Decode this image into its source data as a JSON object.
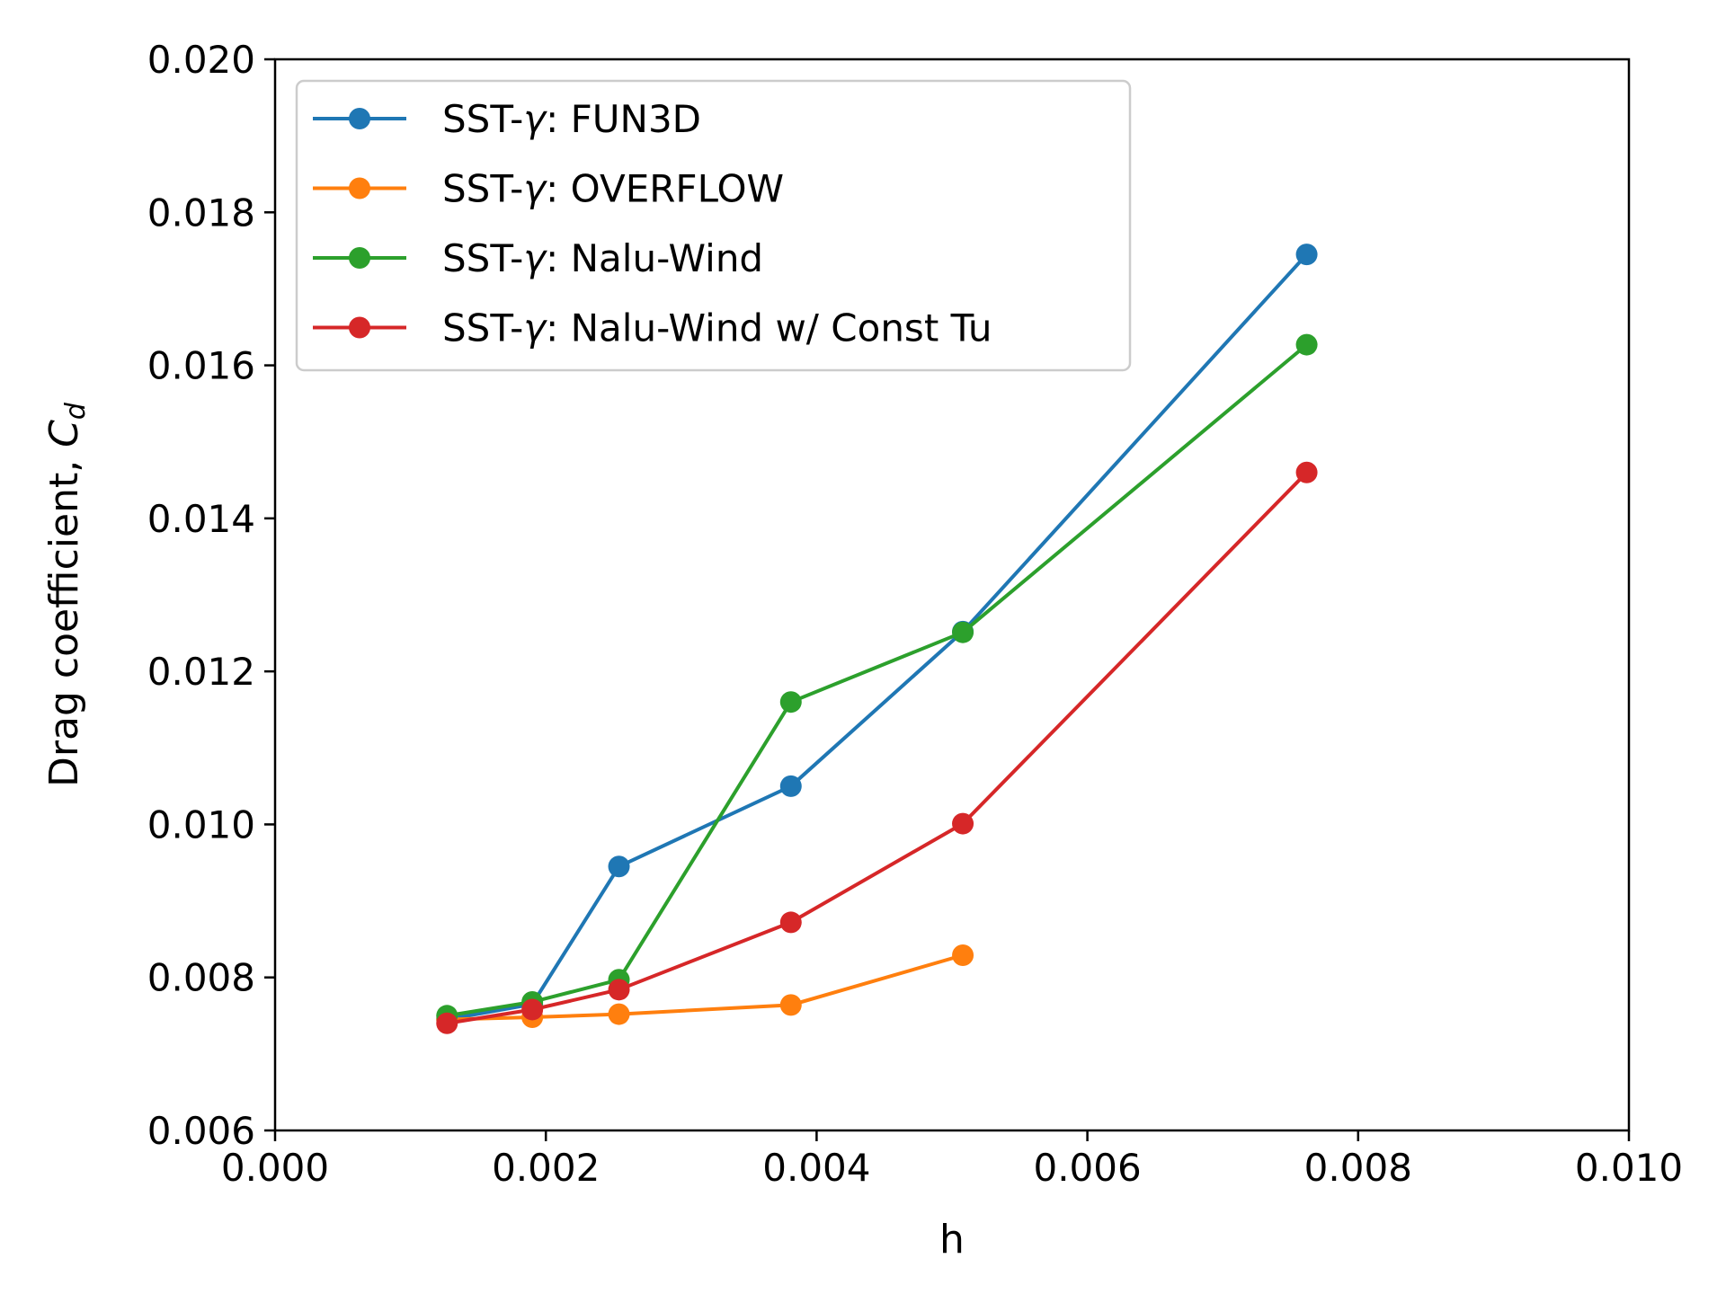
{
  "chart_data": {
    "type": "line",
    "xlabel": "h",
    "ylabel": "Drag coefficient, ",
    "ylabel_symbol": "C",
    "ylabel_subscript": "d",
    "xlim": [
      0.0,
      0.01
    ],
    "ylim": [
      0.006,
      0.02
    ],
    "xticks": [
      0.0,
      0.002,
      0.004,
      0.006,
      0.008,
      0.01
    ],
    "xtick_labels": [
      "0.000",
      "0.002",
      "0.004",
      "0.006",
      "0.008",
      "0.010"
    ],
    "yticks": [
      0.006,
      0.008,
      0.01,
      0.012,
      0.014,
      0.016,
      0.018,
      0.02
    ],
    "ytick_labels": [
      "0.006",
      "0.008",
      "0.010",
      "0.012",
      "0.014",
      "0.016",
      "0.018",
      "0.020"
    ],
    "grid": false,
    "legend_position": "top-left",
    "series": [
      {
        "name_prefix": "SST-",
        "name_symbol": "γ",
        "name_suffix": ": FUN3D",
        "color": "#1f77b4",
        "x": [
          0.00127,
          0.0019,
          0.00254,
          0.00381,
          0.00508,
          0.00762
        ],
        "y": [
          0.00745,
          0.00765,
          0.00945,
          0.0105,
          0.01252,
          0.01745
        ]
      },
      {
        "name_prefix": "SST-",
        "name_symbol": "γ",
        "name_suffix": ": OVERFLOW",
        "color": "#ff7f0e",
        "x": [
          0.00127,
          0.0019,
          0.00254,
          0.00381,
          0.00508
        ],
        "y": [
          0.00745,
          0.00748,
          0.00752,
          0.00764,
          0.00829
        ]
      },
      {
        "name_prefix": "SST-",
        "name_symbol": "γ",
        "name_suffix": ": Nalu-Wind",
        "color": "#2ca02c",
        "x": [
          0.00127,
          0.0019,
          0.00254,
          0.00381,
          0.00508,
          0.00762
        ],
        "y": [
          0.0075,
          0.00768,
          0.00797,
          0.0116,
          0.01251,
          0.01627
        ]
      },
      {
        "name_prefix": "SST-",
        "name_symbol": "γ",
        "name_suffix": ": Nalu-Wind w/ Const Tu",
        "color": "#d62728",
        "x": [
          0.00127,
          0.0019,
          0.00254,
          0.00381,
          0.00508,
          0.00762
        ],
        "y": [
          0.0074,
          0.00758,
          0.00784,
          0.00872,
          0.01001,
          0.0146
        ]
      }
    ]
  }
}
